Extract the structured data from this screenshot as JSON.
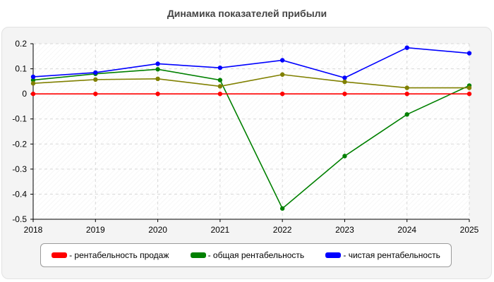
{
  "chart_data": {
    "type": "line",
    "title": "Динамика показателей прибыли",
    "x": [
      "2018",
      "2019",
      "2020",
      "2021",
      "2022",
      "2023",
      "2024",
      "2025"
    ],
    "ylim": [
      -0.5,
      0.2
    ],
    "yticks": [
      "0.2",
      "0.1",
      "0",
      "-0.1",
      "-0.2",
      "-0.3",
      "-0.4",
      "-0.5"
    ],
    "ytick_values": [
      0.2,
      0.1,
      0,
      -0.1,
      -0.2,
      -0.3,
      -0.4,
      -0.5
    ],
    "grid": true,
    "legend_position": "bottom",
    "series": [
      {
        "name": "- рентабельность продаж",
        "color": "#ff0000",
        "values": [
          0,
          0,
          0,
          0,
          0,
          0,
          0,
          0
        ]
      },
      {
        "name": "- общая рентабельность",
        "color": "#008000",
        "values": [
          0.055,
          0.08,
          0.098,
          0.055,
          -0.457,
          -0.248,
          -0.082,
          0.033
        ]
      },
      {
        "name": "- чистая рентабельность",
        "color": "#0000ff",
        "values": [
          0.068,
          0.085,
          0.12,
          0.104,
          0.134,
          0.064,
          0.184,
          0.162
        ]
      },
      {
        "name": "",
        "color": "#808000",
        "values": [
          0.042,
          0.057,
          0.06,
          0.03,
          0.077,
          0.048,
          0.024,
          0.024
        ]
      }
    ]
  }
}
